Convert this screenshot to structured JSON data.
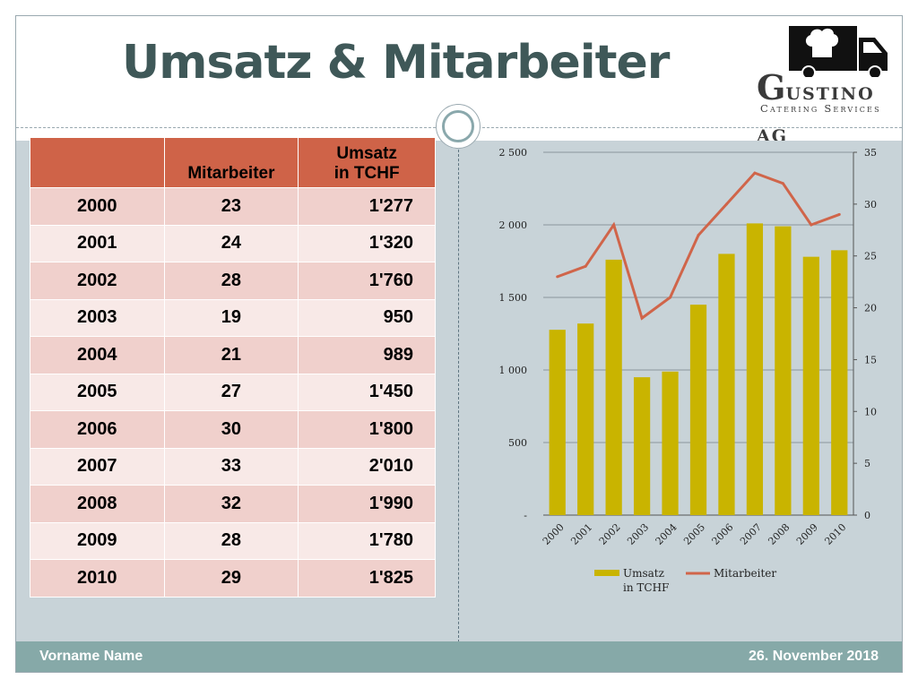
{
  "title": "Umsatz & Mitarbeiter",
  "logo": {
    "letter": "G",
    "name_rest": "USTINO AG",
    "subtitle": "Catering Services"
  },
  "table": {
    "headers": [
      "",
      "Mitarbeiter",
      "Umsatz in TCHF"
    ],
    "header_umsatz_lines": [
      "Umsatz",
      "in TCHF"
    ],
    "rows": [
      [
        "2000",
        "23",
        "1'277"
      ],
      [
        "2001",
        "24",
        "1'320"
      ],
      [
        "2002",
        "28",
        "1'760"
      ],
      [
        "2003",
        "19",
        "950"
      ],
      [
        "2004",
        "21",
        "989"
      ],
      [
        "2005",
        "27",
        "1'450"
      ],
      [
        "2006",
        "30",
        "1'800"
      ],
      [
        "2007",
        "33",
        "2'010"
      ],
      [
        "2008",
        "32",
        "1'990"
      ],
      [
        "2009",
        "28",
        "1'780"
      ],
      [
        "2010",
        "29",
        "1'825"
      ]
    ]
  },
  "chart_data": {
    "type": "bar",
    "categories": [
      "2000",
      "2001",
      "2002",
      "2003",
      "2004",
      "2005",
      "2006",
      "2007",
      "2008",
      "2009",
      "2010"
    ],
    "series": [
      {
        "name": "Umsatz in TCHF",
        "legend_lines": [
          "Umsatz",
          "in TCHF"
        ],
        "kind": "bar",
        "axis": "left",
        "color": "#c9b400",
        "values": [
          1277,
          1320,
          1760,
          950,
          989,
          1450,
          1800,
          2010,
          1990,
          1780,
          1825
        ]
      },
      {
        "name": "Mitarbeiter",
        "kind": "line",
        "axis": "right",
        "color": "#d0654a",
        "values": [
          23,
          24,
          28,
          19,
          21,
          27,
          30,
          33,
          32,
          28,
          29
        ]
      }
    ],
    "y_left": {
      "ylim": [
        0,
        2500
      ],
      "ticks": [
        "-",
        "500",
        "1 000",
        "1 500",
        "2 000",
        "2 500"
      ]
    },
    "y_right": {
      "ylim": [
        0,
        35
      ],
      "ticks": [
        "0",
        "5",
        "10",
        "15",
        "20",
        "25",
        "30",
        "35"
      ]
    },
    "grid": true,
    "legend": "bottom"
  },
  "footer": {
    "name": "Vorname Name",
    "date": "26. November 2018"
  },
  "colors": {
    "title": "#3f5858",
    "header": "#cf6348",
    "row_odd": "#f0d0cc",
    "row_even": "#f8e9e7",
    "background": "#c8d3d8",
    "footer": "#86a9a8"
  }
}
